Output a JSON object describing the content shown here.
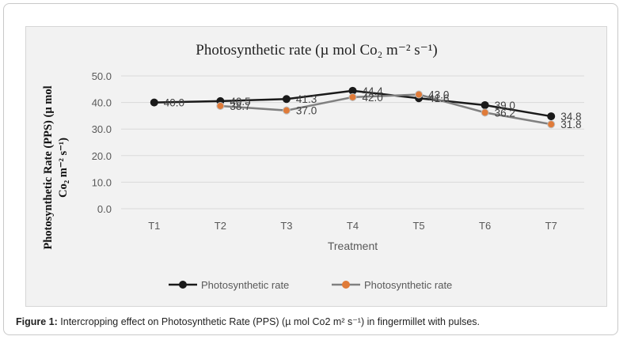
{
  "chart_data": {
    "type": "line",
    "title": "Photosynthetic rate (µ mol Co₂ m⁻² s⁻¹)",
    "xlabel": "Treatment",
    "ylabel_line1": "Photosynthetic Rate (PPS) (µ mol",
    "ylabel_line2": "Co₂ m⁻² s⁻¹)",
    "categories": [
      "T1",
      "T2",
      "T3",
      "T4",
      "T5",
      "T6",
      "T7"
    ],
    "ylim": [
      0,
      50
    ],
    "yticks": [
      "0.0",
      "10.0",
      "20.0",
      "30.0",
      "40.0",
      "50.0"
    ],
    "grid": true,
    "legend_position": "bottom",
    "series": [
      {
        "name": "Photosynthetic rate",
        "color": "#1a1a1a",
        "marker_color": "#1a1a1a",
        "values": [
          40.0,
          40.5,
          41.3,
          44.4,
          41.6,
          39.0,
          34.8
        ],
        "labels": [
          "40.0",
          "40.5",
          "41.3",
          "44.4",
          "41.6",
          "39.0",
          "34.8"
        ]
      },
      {
        "name": "Photosynthetic rate",
        "color": "#808080",
        "marker_color": "#e07b39",
        "values": [
          null,
          38.7,
          37.0,
          42.0,
          43.0,
          36.2,
          31.8
        ],
        "labels": [
          "",
          "38.7",
          "37.0",
          "42.0",
          "43.0",
          "36.2",
          "31.8"
        ]
      }
    ]
  },
  "caption": {
    "label": "Figure 1:",
    "text": " Intercropping effect on Photosynthetic Rate (PPS) (µ mol Co2 m² s⁻¹) in fingermillet with pulses."
  }
}
